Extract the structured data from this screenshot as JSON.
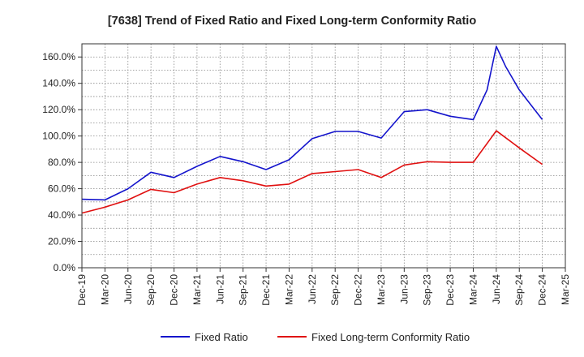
{
  "chart_data": {
    "type": "line",
    "title": "[7638]  Trend of Fixed Ratio and Fixed Long-term Conformity Ratio",
    "xlabel": "",
    "ylabel": "",
    "categories": [
      "Dec-19",
      "Mar-20",
      "Jun-20",
      "Sep-20",
      "Dec-20",
      "Mar-21",
      "Jun-21",
      "Sep-21",
      "Dec-21",
      "Mar-22",
      "Jun-22",
      "Sep-22",
      "Dec-22",
      "Mar-23",
      "Jun-23",
      "Sep-23",
      "Dec-23",
      "Mar-24",
      "Jun-24",
      "Sep-24",
      "Dec-24",
      "Mar-25"
    ],
    "ylim": [
      0,
      170
    ],
    "yticks": [
      0,
      20,
      40,
      60,
      80,
      100,
      120,
      140,
      160
    ],
    "ytick_labels": [
      "0.0%",
      "20.0%",
      "40.0%",
      "60.0%",
      "80.0%",
      "100.0%",
      "120.0%",
      "140.0%",
      "160.0%"
    ],
    "grid": true,
    "legend_position": "bottom",
    "series": [
      {
        "name": "Fixed Ratio",
        "color": "#1414cc",
        "points": [
          [
            0,
            52.0
          ],
          [
            1,
            51.5
          ],
          [
            2,
            60.0
          ],
          [
            3,
            72.5
          ],
          [
            4,
            68.5
          ],
          [
            5,
            77.0
          ],
          [
            6,
            84.5
          ],
          [
            7,
            80.5
          ],
          [
            8,
            74.5
          ],
          [
            9,
            82.0
          ],
          [
            10,
            98.0
          ],
          [
            11,
            103.5
          ],
          [
            12,
            103.5
          ],
          [
            13,
            98.5
          ],
          [
            14,
            118.5
          ],
          [
            15,
            120.0
          ],
          [
            16,
            115.0
          ],
          [
            17,
            112.5
          ],
          [
            17.6,
            135.0
          ],
          [
            18,
            168.0
          ],
          [
            18.4,
            153.0
          ],
          [
            19,
            135.0
          ],
          [
            20,
            112.5
          ]
        ]
      },
      {
        "name": "Fixed Long-term Conformity Ratio",
        "color": "#e01010",
        "points": [
          [
            0,
            41.5
          ],
          [
            1,
            46.0
          ],
          [
            2,
            51.5
          ],
          [
            3,
            59.5
          ],
          [
            4,
            57.0
          ],
          [
            5,
            63.5
          ],
          [
            6,
            68.5
          ],
          [
            7,
            66.0
          ],
          [
            8,
            62.0
          ],
          [
            9,
            63.5
          ],
          [
            10,
            71.5
          ],
          [
            11,
            73.0
          ],
          [
            12,
            74.5
          ],
          [
            13,
            68.5
          ],
          [
            14,
            78.0
          ],
          [
            15,
            80.5
          ],
          [
            16,
            80.0
          ],
          [
            17,
            80.0
          ],
          [
            18,
            104.0
          ],
          [
            19,
            91.0
          ],
          [
            20,
            78.5
          ]
        ]
      }
    ]
  }
}
